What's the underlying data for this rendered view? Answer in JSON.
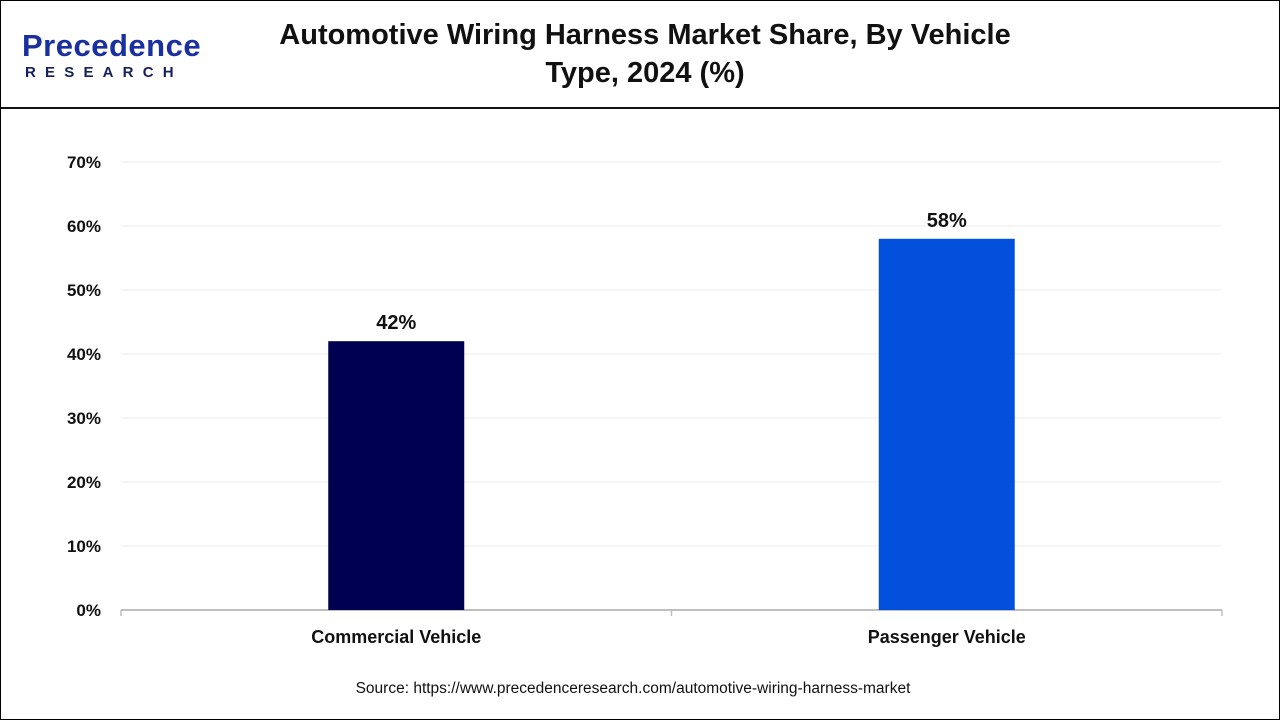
{
  "logo": {
    "main": "Precedence",
    "sub": "RESEARCH"
  },
  "header": {
    "title": "Automotive Wiring Harness Market Share, By Vehicle Type, 2024 (%)"
  },
  "chart_data": {
    "type": "bar",
    "title": "Automotive Wiring Harness Market Share, By Vehicle Type, 2024 (%)",
    "categories": [
      "Commercial Vehicle",
      "Passenger Vehicle"
    ],
    "values": [
      42,
      58
    ],
    "data_labels": [
      "42%",
      "58%"
    ],
    "colors": [
      "#000050",
      "#0350dc"
    ],
    "xlabel": "",
    "ylabel": "",
    "ylim": [
      0,
      70
    ],
    "yticks": [
      "0%",
      "10%",
      "20%",
      "30%",
      "40%",
      "50%",
      "60%",
      "70%"
    ],
    "grid": true,
    "legend": "none"
  },
  "footer": {
    "source": "Source: https://www.precedenceresearch.com/automotive-wiring-harness-market"
  }
}
